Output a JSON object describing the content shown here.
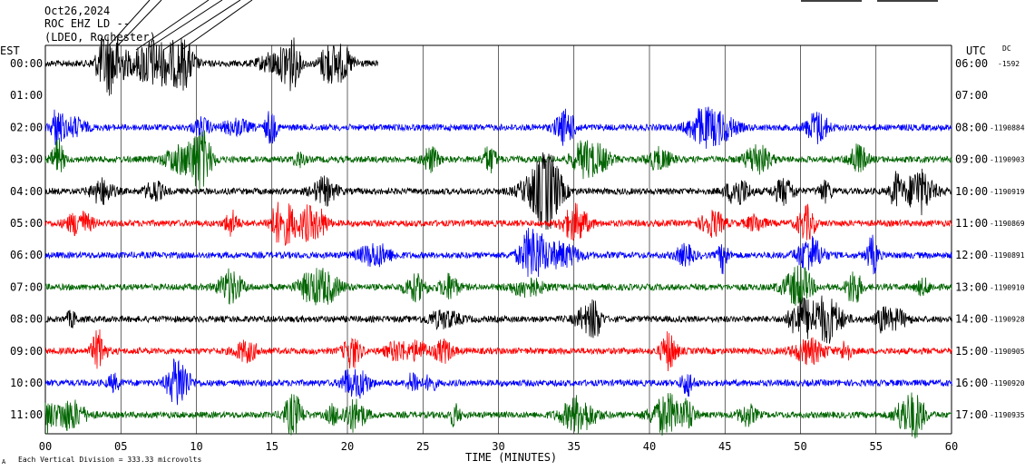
{
  "header": {
    "date": "Oct26,2024",
    "station": "ROC EHZ LD --",
    "network": "(LDEO, Rochester)"
  },
  "labels": {
    "left_timezone": "EST",
    "right_timezone": "UTC",
    "dc_label": "DC",
    "xlabel": "TIME (MINUTES)",
    "footer": "Each Vertical Division =  333.33 microvolts"
  },
  "chart_data": {
    "type": "line",
    "title": "",
    "xlabel": "TIME (MINUTES)",
    "xlim": [
      0,
      60
    ],
    "x_ticks": [
      "00",
      "05",
      "10",
      "15",
      "20",
      "25",
      "30",
      "35",
      "40",
      "45",
      "50",
      "55",
      "60"
    ],
    "grid": "vertical",
    "vertical_division_microvolts": 333.33,
    "series": [
      {
        "left_time": "00:00",
        "right_time": "06:00",
        "dc_offset": "-1592",
        "color": "#000000",
        "end_minute": 22
      },
      {
        "left_time": "01:00",
        "right_time": "07:00",
        "dc_offset": "",
        "color": "#000000",
        "end_minute": 0
      },
      {
        "left_time": "02:00",
        "right_time": "08:00",
        "dc_offset": "-1190884",
        "color": "#0000ff",
        "end_minute": 60
      },
      {
        "left_time": "03:00",
        "right_time": "09:00",
        "dc_offset": "-1190903",
        "color": "#006400",
        "end_minute": 60
      },
      {
        "left_time": "04:00",
        "right_time": "10:00",
        "dc_offset": "-1190919",
        "color": "#000000",
        "end_minute": 60
      },
      {
        "left_time": "05:00",
        "right_time": "11:00",
        "dc_offset": "-1190869",
        "color": "#ff0000",
        "end_minute": 60
      },
      {
        "left_time": "06:00",
        "right_time": "12:00",
        "dc_offset": "-1190891",
        "color": "#0000ff",
        "end_minute": 60
      },
      {
        "left_time": "07:00",
        "right_time": "13:00",
        "dc_offset": "-1190910",
        "color": "#006400",
        "end_minute": 60
      },
      {
        "left_time": "08:00",
        "right_time": "14:00",
        "dc_offset": "-1190928",
        "color": "#000000",
        "end_minute": 60
      },
      {
        "left_time": "09:00",
        "right_time": "15:00",
        "dc_offset": "-1190905",
        "color": "#ff0000",
        "end_minute": 60
      },
      {
        "left_time": "10:00",
        "right_time": "16:00",
        "dc_offset": "-1190920",
        "color": "#0000ff",
        "end_minute": 60
      },
      {
        "left_time": "11:00",
        "right_time": "17:00",
        "dc_offset": "-1190935",
        "color": "#006400",
        "end_minute": 60
      }
    ]
  }
}
